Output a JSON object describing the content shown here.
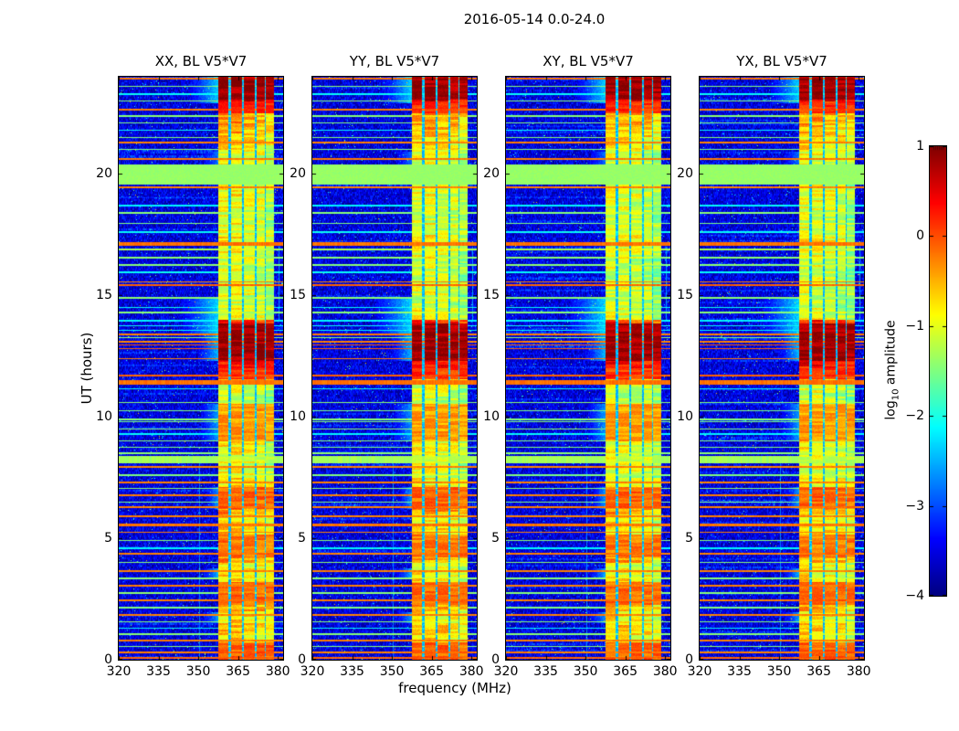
{
  "chart_data": {
    "type": "heatmap",
    "title": "2016-05-14 0.0-24.0",
    "xlabel": "frequency (MHz)",
    "ylabel": "UT (hours)",
    "x_range": [
      320,
      382
    ],
    "y_range": [
      0,
      24
    ],
    "x_tick_values": [
      320,
      335,
      350,
      365,
      380
    ],
    "x_tick_labels": [
      "320",
      "335",
      "350",
      "365",
      "380"
    ],
    "y_tick_values": [
      0,
      5,
      10,
      15,
      20
    ],
    "y_tick_labels": [
      "0",
      "5",
      "10",
      "15",
      "20"
    ],
    "grid": false,
    "legend": "none",
    "panels": [
      {
        "label": "XX, BL V5*V7",
        "seed": 101,
        "band_offset": 0.0
      },
      {
        "label": "YY, BL V5*V7",
        "seed": 202,
        "band_offset": -0.05
      },
      {
        "label": "XY, BL V5*V7",
        "seed": 303,
        "band_offset": -0.1
      },
      {
        "label": "YX, BL V5*V7",
        "seed": 404,
        "band_offset": -0.08
      }
    ],
    "colorbar": {
      "label_prefix": "log",
      "label_sub": "10",
      "label_suffix": " amplitude",
      "vmin": -4,
      "vmax": 1,
      "tick_values": [
        1,
        0,
        -1,
        -2,
        -3,
        -4
      ],
      "tick_labels": [
        "1",
        "0",
        "−1",
        "−2",
        "−3",
        "−4"
      ],
      "colormap": "jet",
      "color_stops": {
        "dark_blue": "#00007f",
        "blue": "#0000ff",
        "cyan": "#00ffff",
        "green": "#7fff7f",
        "yellow": "#ffff00",
        "orange": "#ff7f00",
        "red": "#ff0000",
        "dark_red": "#7f0000"
      }
    },
    "spectrogram": {
      "background_level": -3.95,
      "background_noise": 0.85,
      "rfi_band": {
        "f0": 357.6,
        "f1": 378.4,
        "stripe_bias": [
          0.08,
          0.1,
          0.0,
          -0.05,
          -0.25
        ],
        "gaps": [
          {
            "f": 361.9,
            "w": 0.8
          },
          {
            "f": 366.8,
            "w": 0.7
          },
          {
            "f": 371.6,
            "w": 0.8
          },
          {
            "f": 375.3,
            "w": 0.55
          }
        ],
        "profile_step_hours": 0.5,
        "profile": [
          -0.35,
          -0.75,
          -0.65,
          -0.8,
          -0.5,
          -0.4,
          -0.8,
          -0.9,
          -0.5,
          -0.45,
          -0.7,
          -0.8,
          -0.4,
          -0.45,
          -0.85,
          -1.0,
          -1.05,
          -0.9,
          -0.55,
          -0.55,
          -0.65,
          -1.15,
          -1.05,
          -0.4,
          0.3,
          0.7,
          0.7,
          0.2,
          -1.0,
          -1.15,
          -1.05,
          -1.15,
          -1.1,
          -1.0,
          -0.85,
          -1.0,
          -1.1,
          -1.0,
          -0.95,
          -1.0,
          -1.05,
          -1.0,
          -0.75,
          -0.55,
          -0.45,
          -0.1,
          0.6,
          0.75
        ]
      },
      "green_band": {
        "t0": 19.55,
        "t1": 20.4,
        "level": -1.38
      },
      "blobs": [
        {
          "t0": 23.05,
          "t1": 24.0,
          "level": 0.78
        },
        {
          "t0": 22.5,
          "t1": 23.05,
          "level": 0.15
        },
        {
          "t0": 12.3,
          "t1": 13.85,
          "level": 0.78
        },
        {
          "t0": 11.55,
          "t1": 12.3,
          "level": 0.1
        },
        {
          "t0": 9.0,
          "t1": 10.55,
          "level": -0.42
        },
        {
          "t0": 6.2,
          "t1": 7.1,
          "level": -0.15
        },
        {
          "t0": 4.2,
          "t1": 5.15,
          "level": -0.25
        },
        {
          "t0": 2.25,
          "t1": 3.2,
          "level": -0.2
        },
        {
          "t0": 0.0,
          "t1": 0.7,
          "level": -0.12
        }
      ],
      "halos": [
        {
          "t0": 13.35,
          "t1": 14.9,
          "f0": 344,
          "level": -2.3
        },
        {
          "t0": 22.9,
          "t1": 24.0,
          "f0": 347,
          "level": -2.35
        },
        {
          "t0": 12.3,
          "t1": 13.35,
          "f0": 350,
          "level": -2.45
        },
        {
          "t0": 9.0,
          "t1": 10.55,
          "f0": 351,
          "level": -2.6
        },
        {
          "t0": 6.2,
          "t1": 7.1,
          "f0": 353,
          "level": -2.6
        },
        {
          "t0": 3.3,
          "t1": 3.75,
          "f0": 352,
          "level": -2.5
        },
        {
          "t0": 1.5,
          "t1": 1.95,
          "f0": 352,
          "level": -2.6
        },
        {
          "t0": 20.2,
          "t1": 20.9,
          "f0": 352,
          "level": -2.8
        }
      ],
      "v_lines": [
        {
          "f": 350.6,
          "w": 0.25,
          "t0": 0,
          "t1": 8.2,
          "level": -2.75
        },
        {
          "f": 380.3,
          "w": 0.3,
          "t0": 14,
          "t1": 17,
          "level": -2.6
        }
      ],
      "h_lines": [
        {
          "t": 23.92,
          "w": 0.1,
          "v": -0.22
        },
        {
          "t": 23.6,
          "w": 0.06,
          "v": -1.45
        },
        {
          "t": 23.3,
          "w": 0.07,
          "v": -2.1
        },
        {
          "t": 23.0,
          "w": 0.05,
          "v": -1.45
        },
        {
          "t": 22.65,
          "w": 0.08,
          "v": -0.25
        },
        {
          "t": 22.38,
          "w": 0.05,
          "v": -1.45
        },
        {
          "t": 22.1,
          "w": 0.05,
          "v": -1.5
        },
        {
          "t": 21.8,
          "w": 0.06,
          "v": -2.15
        },
        {
          "t": 21.5,
          "w": 0.05,
          "v": -1.45
        },
        {
          "t": 21.3,
          "w": 0.08,
          "v": -0.25
        },
        {
          "t": 21.0,
          "w": 0.05,
          "v": -1.5
        },
        {
          "t": 20.6,
          "w": 0.08,
          "v": -0.22
        },
        {
          "t": 19.45,
          "w": 0.08,
          "v": -0.25
        },
        {
          "t": 18.7,
          "w": 0.06,
          "v": -2.15
        },
        {
          "t": 18.4,
          "w": 0.05,
          "v": -1.45
        },
        {
          "t": 17.95,
          "w": 0.05,
          "v": -1.5
        },
        {
          "t": 17.6,
          "w": 0.05,
          "v": -2.1
        },
        {
          "t": 17.12,
          "w": 0.14,
          "v": -0.18
        },
        {
          "t": 16.9,
          "w": 0.06,
          "v": -1.3
        },
        {
          "t": 16.55,
          "w": 0.05,
          "v": -1.45
        },
        {
          "t": 16.25,
          "w": 0.05,
          "v": -1.45
        },
        {
          "t": 15.95,
          "w": 0.05,
          "v": -2.1
        },
        {
          "t": 15.55,
          "w": 0.06,
          "v": -0.25
        },
        {
          "t": 15.42,
          "w": 0.05,
          "v": -0.12
        },
        {
          "t": 14.9,
          "w": 0.05,
          "v": -1.45
        },
        {
          "t": 14.5,
          "w": 0.07,
          "v": -2.1
        },
        {
          "t": 14.3,
          "w": 0.05,
          "v": -1.45
        },
        {
          "t": 13.95,
          "w": 0.05,
          "v": -2.15
        },
        {
          "t": 13.75,
          "w": 0.05,
          "v": -2.1
        },
        {
          "t": 13.55,
          "w": 0.05,
          "v": -2.15
        },
        {
          "t": 13.4,
          "w": 0.06,
          "v": -0.25
        },
        {
          "t": 13.25,
          "w": 0.05,
          "v": -1.4
        },
        {
          "t": 13.1,
          "w": 0.06,
          "v": -0.25
        },
        {
          "t": 12.95,
          "w": 0.05,
          "v": -0.08
        },
        {
          "t": 12.8,
          "w": 0.05,
          "v": -0.08
        },
        {
          "t": 12.4,
          "w": 0.06,
          "v": -0.25
        },
        {
          "t": 11.7,
          "w": 0.05,
          "v": -0.1
        },
        {
          "t": 11.42,
          "w": 0.2,
          "v": -0.18
        },
        {
          "t": 11.15,
          "w": 0.06,
          "v": -2.15
        },
        {
          "t": 10.6,
          "w": 0.05,
          "v": -1.45
        },
        {
          "t": 10.25,
          "w": 0.05,
          "v": -1.5
        },
        {
          "t": 9.9,
          "w": 0.06,
          "v": -1.45
        },
        {
          "t": 9.8,
          "w": 0.04,
          "v": -1.5
        },
        {
          "t": 9.5,
          "w": 0.05,
          "v": -1.45
        },
        {
          "t": 9.3,
          "w": 0.06,
          "v": -2.15
        },
        {
          "t": 9.0,
          "w": 0.05,
          "v": -1.45
        },
        {
          "t": 8.75,
          "w": 0.05,
          "v": -1.5
        },
        {
          "t": 8.5,
          "w": 0.05,
          "v": -1.45
        },
        {
          "t": 8.22,
          "w": 0.3,
          "v": -1.32
        },
        {
          "t": 7.95,
          "w": 0.08,
          "v": -0.25
        },
        {
          "t": 7.6,
          "w": 0.05,
          "v": -1.5
        },
        {
          "t": 7.3,
          "w": 0.07,
          "v": -0.25
        },
        {
          "t": 7.05,
          "w": 0.05,
          "v": -1.45
        },
        {
          "t": 6.78,
          "w": 0.07,
          "v": -0.25
        },
        {
          "t": 6.5,
          "w": 0.05,
          "v": -1.5
        },
        {
          "t": 6.28,
          "w": 0.07,
          "v": -0.25
        },
        {
          "t": 5.9,
          "w": 0.07,
          "v": -0.25
        },
        {
          "t": 5.55,
          "w": 0.09,
          "v": -0.2
        },
        {
          "t": 5.25,
          "w": 0.07,
          "v": -0.25
        },
        {
          "t": 4.9,
          "w": 0.05,
          "v": -1.45
        },
        {
          "t": 4.6,
          "w": 0.06,
          "v": -2.15
        },
        {
          "t": 4.35,
          "w": 0.07,
          "v": -0.25
        },
        {
          "t": 4.0,
          "w": 0.05,
          "v": -1.45
        },
        {
          "t": 3.65,
          "w": 0.07,
          "v": -0.25
        },
        {
          "t": 3.35,
          "w": 0.05,
          "v": -1.45
        },
        {
          "t": 3.05,
          "w": 0.07,
          "v": -0.25
        },
        {
          "t": 2.75,
          "w": 0.05,
          "v": -1.45
        },
        {
          "t": 2.45,
          "w": 0.07,
          "v": -0.25
        },
        {
          "t": 2.15,
          "w": 0.05,
          "v": -1.5
        },
        {
          "t": 1.85,
          "w": 0.07,
          "v": -0.25
        },
        {
          "t": 1.55,
          "w": 0.05,
          "v": -1.45
        },
        {
          "t": 1.3,
          "w": 0.06,
          "v": -2.15
        },
        {
          "t": 1.05,
          "w": 0.05,
          "v": -1.45
        },
        {
          "t": 0.8,
          "w": 0.07,
          "v": -0.25
        },
        {
          "t": 0.55,
          "w": 0.05,
          "v": -1.45
        },
        {
          "t": 0.3,
          "w": 0.07,
          "v": -0.25
        },
        {
          "t": 0.07,
          "w": 0.09,
          "v": -0.12
        }
      ]
    }
  }
}
